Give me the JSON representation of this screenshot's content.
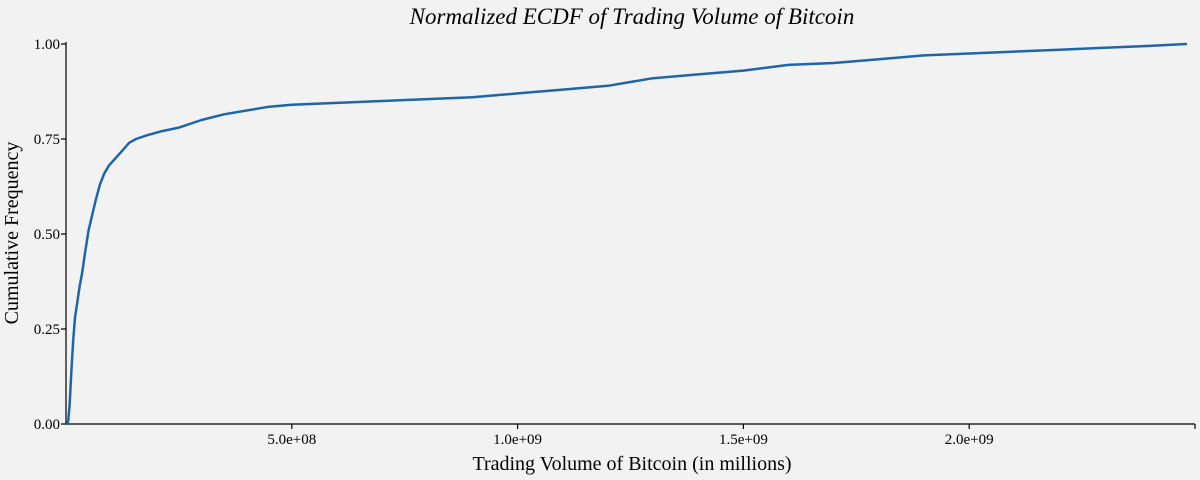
{
  "chart_data": {
    "type": "line",
    "title": "Normalized ECDF of Trading Volume of Bitcoin",
    "xlabel": "Trading Volume of Bitcoin (in millions)",
    "ylabel": "Cumulative Frequency",
    "xlim": [
      0,
      2500000000
    ],
    "ylim": [
      0,
      1
    ],
    "x_ticks": [
      {
        "value": 500000000,
        "label": "5.0e+08"
      },
      {
        "value": 1000000000,
        "label": "1.0e+09"
      },
      {
        "value": 1500000000,
        "label": "1.5e+09"
      },
      {
        "value": 2000000000,
        "label": "2.0e+09"
      }
    ],
    "y_ticks": [
      {
        "value": 0.0,
        "label": "0.00"
      },
      {
        "value": 0.25,
        "label": "0.25"
      },
      {
        "value": 0.5,
        "label": "0.50"
      },
      {
        "value": 0.75,
        "label": "0.75"
      },
      {
        "value": 1.0,
        "label": "1.00"
      }
    ],
    "grid": false,
    "colors": {
      "line": "#1f66a8",
      "background": "#f2f2f2"
    },
    "series": [
      {
        "points": [
          [
            3000000,
            0.0
          ],
          [
            5000000,
            0.01
          ],
          [
            8000000,
            0.05
          ],
          [
            12000000,
            0.14
          ],
          [
            16000000,
            0.22
          ],
          [
            20000000,
            0.28
          ],
          [
            25000000,
            0.32
          ],
          [
            30000000,
            0.36
          ],
          [
            36000000,
            0.4
          ],
          [
            42000000,
            0.45
          ],
          [
            50000000,
            0.51
          ],
          [
            58000000,
            0.55
          ],
          [
            66000000,
            0.59
          ],
          [
            75000000,
            0.63
          ],
          [
            85000000,
            0.66
          ],
          [
            95000000,
            0.68
          ],
          [
            110000000,
            0.7
          ],
          [
            125000000,
            0.72
          ],
          [
            140000000,
            0.74
          ],
          [
            155000000,
            0.75
          ],
          [
            180000000,
            0.76
          ],
          [
            210000000,
            0.77
          ],
          [
            250000000,
            0.78
          ],
          [
            300000000,
            0.8
          ],
          [
            350000000,
            0.815
          ],
          [
            400000000,
            0.825
          ],
          [
            450000000,
            0.835
          ],
          [
            500000000,
            0.84
          ],
          [
            600000000,
            0.845
          ],
          [
            700000000,
            0.85
          ],
          [
            800000000,
            0.855
          ],
          [
            900000000,
            0.86
          ],
          [
            1000000000,
            0.87
          ],
          [
            1100000000,
            0.88
          ],
          [
            1200000000,
            0.89
          ],
          [
            1300000000,
            0.91
          ],
          [
            1400000000,
            0.92
          ],
          [
            1500000000,
            0.93
          ],
          [
            1600000000,
            0.945
          ],
          [
            1700000000,
            0.95
          ],
          [
            1800000000,
            0.96
          ],
          [
            1900000000,
            0.97
          ],
          [
            2000000000,
            0.975
          ],
          [
            2100000000,
            0.98
          ],
          [
            2200000000,
            0.985
          ],
          [
            2300000000,
            0.99
          ],
          [
            2400000000,
            0.995
          ],
          [
            2480000000,
            1.0
          ]
        ]
      }
    ]
  }
}
